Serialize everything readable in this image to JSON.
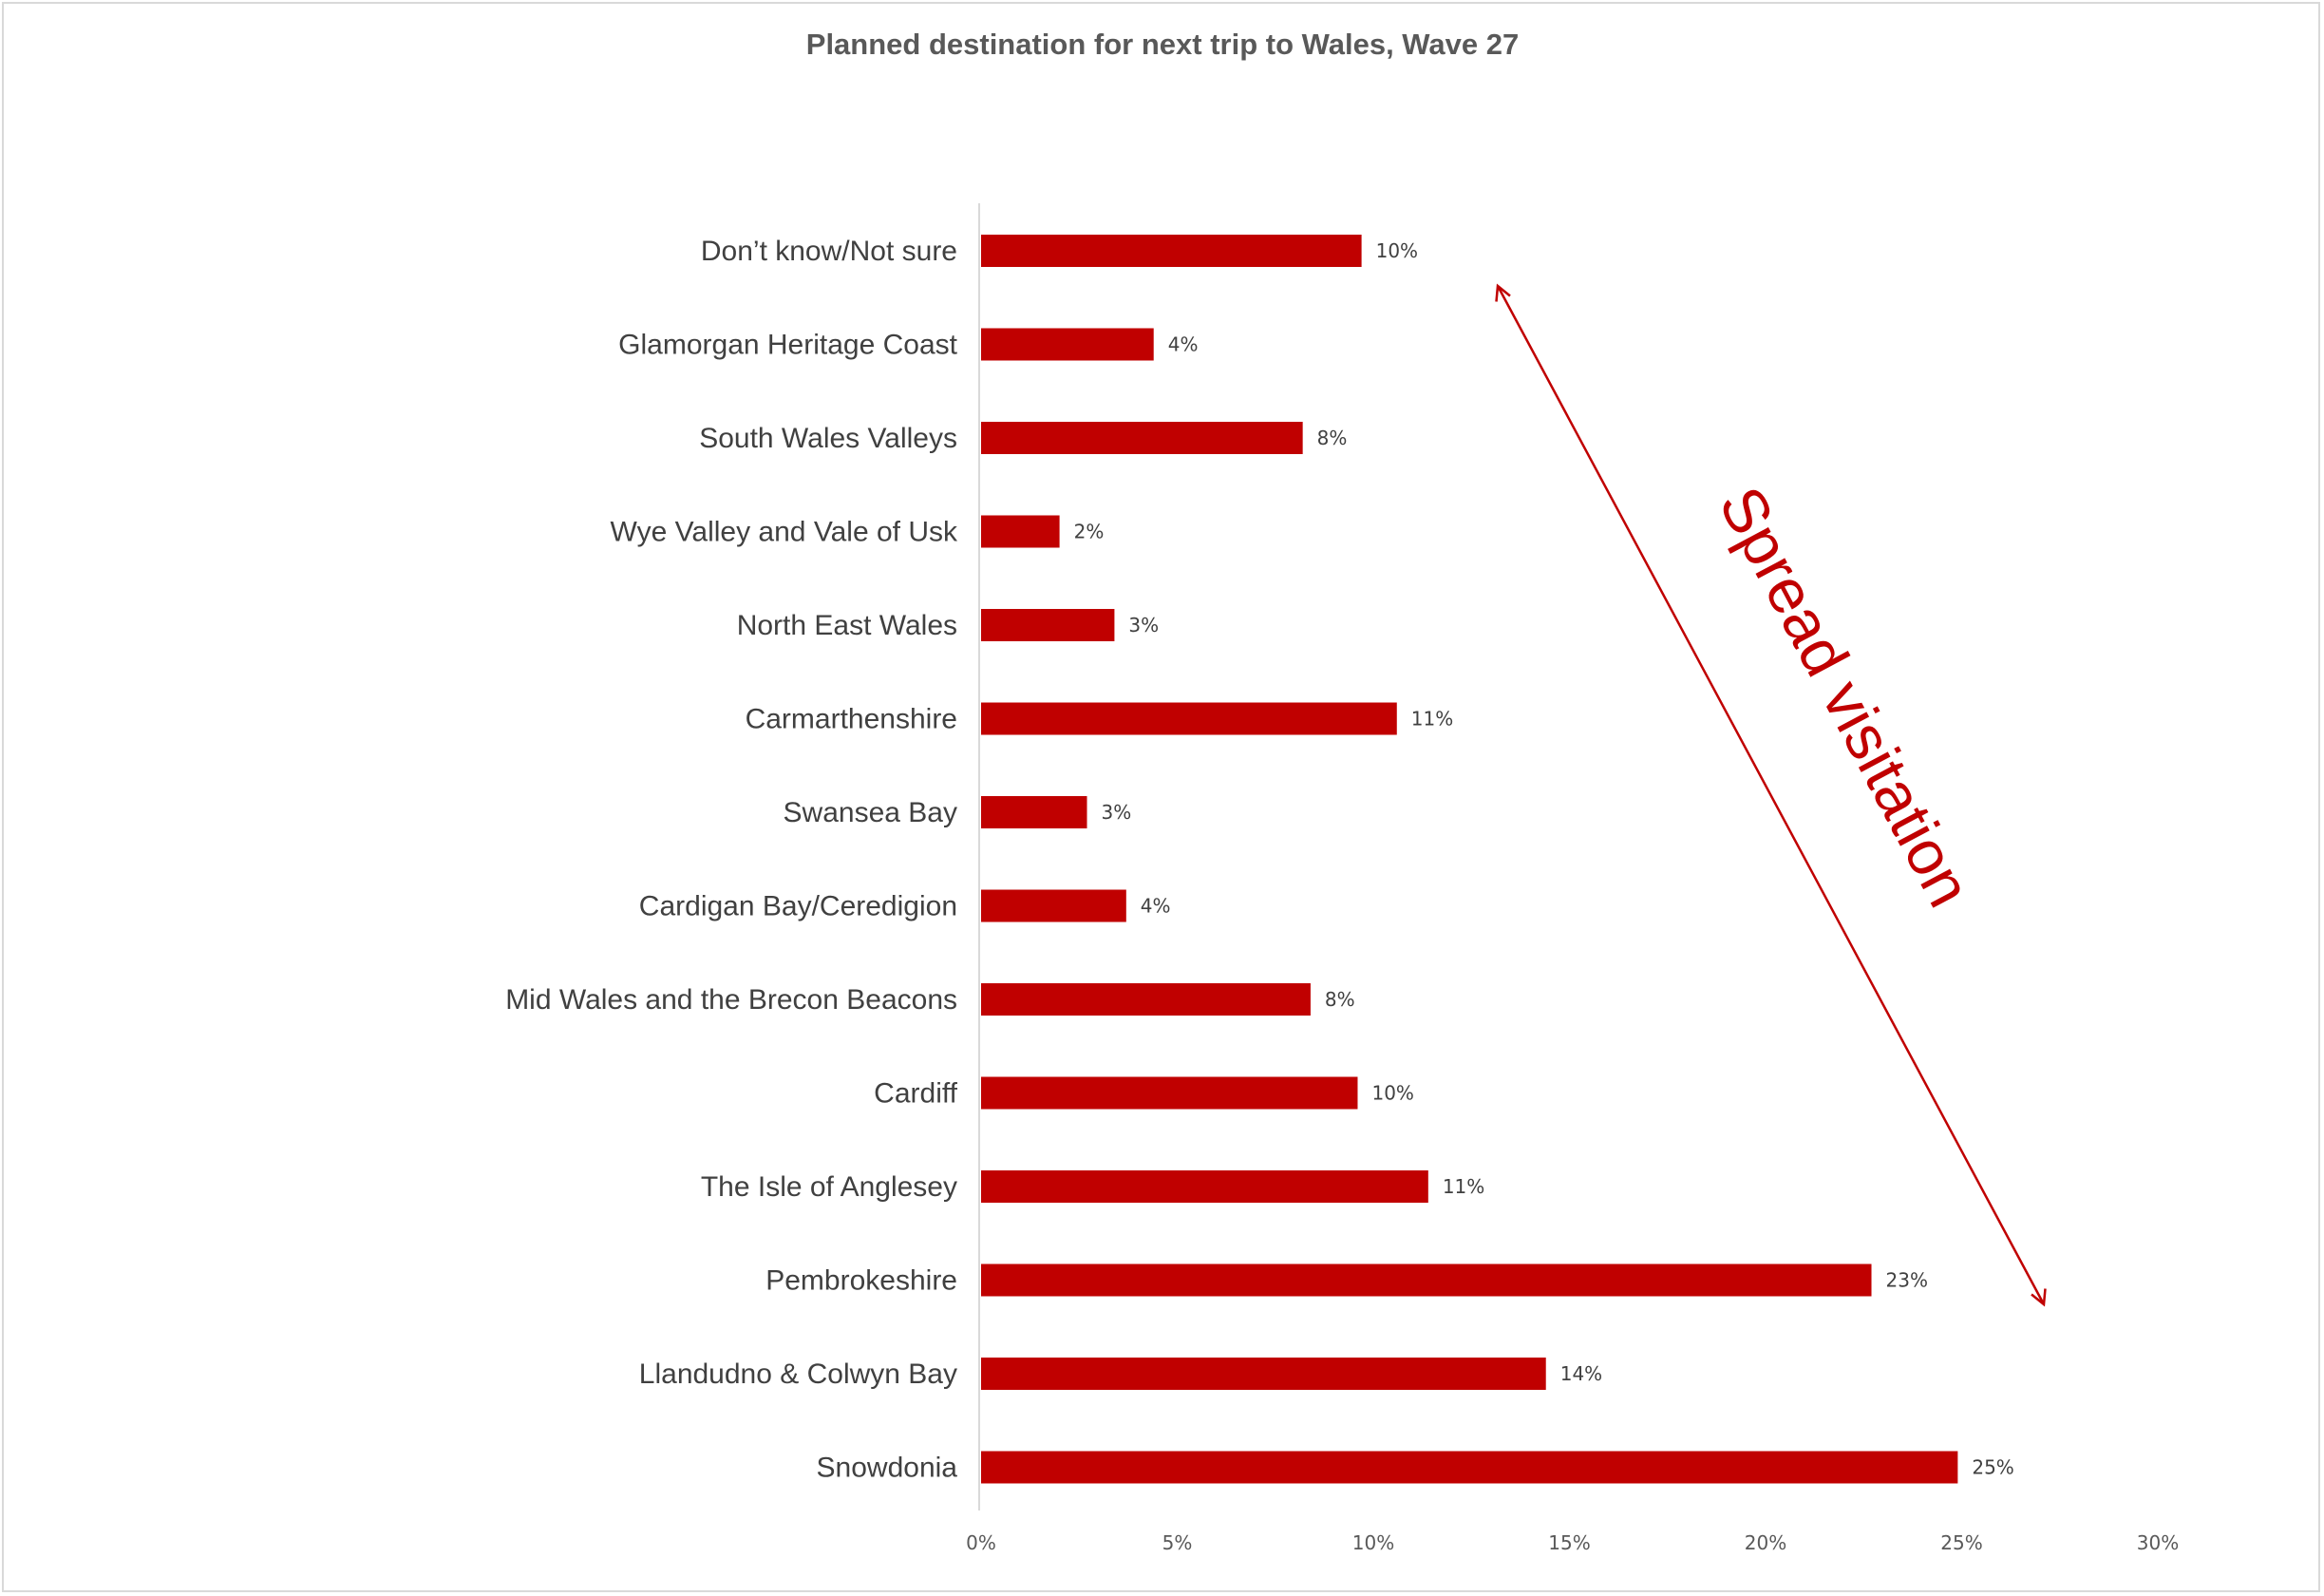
{
  "chart_data": {
    "type": "bar",
    "orientation": "horizontal",
    "title": "Planned destination for next trip to Wales, Wave 27",
    "categories": [
      "Don’t know/Not sure",
      "Glamorgan Heritage Coast",
      "South Wales Valleys",
      "Wye Valley and Vale of Usk",
      "North East Wales",
      "Carmarthenshire",
      "Swansea Bay",
      "Cardigan Bay/Ceredigion",
      "Mid Wales and the Brecon Beacons",
      "Cardiff",
      "The Isle of Anglesey",
      "Pembrokeshire",
      "Llandudno & Colwyn Bay",
      "Snowdonia"
    ],
    "values": [
      9.7,
      4.4,
      8.2,
      2.0,
      3.4,
      10.6,
      2.7,
      3.7,
      8.4,
      9.6,
      11.4,
      22.7,
      14.4,
      24.9
    ],
    "value_labels": [
      "10%",
      "4%",
      "8%",
      "2%",
      "3%",
      "11%",
      "3%",
      "4%",
      "8%",
      "10%",
      "11%",
      "23%",
      "14%",
      "25%"
    ],
    "xlim": [
      0,
      30
    ],
    "xticks": [
      "0%",
      "5%",
      "10%",
      "15%",
      "20%",
      "25%",
      "30%"
    ],
    "xlabel": "",
    "ylabel": "",
    "grid": false,
    "legend": "none",
    "bar_color": "#c00000",
    "annotation": {
      "text": "Spread visitation",
      "color": "#c00000"
    }
  }
}
